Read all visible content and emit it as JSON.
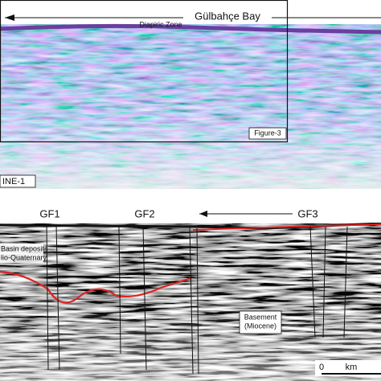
{
  "top_panel": {
    "title": "Gülbahçe Bay",
    "zone": "Diapiric Zone",
    "figure_ref": "Figure-3",
    "line": "INE-1"
  },
  "bottom_panel": {
    "faults": [
      "GF1",
      "GF2",
      "GF3"
    ],
    "basin": [
      "Basin deposits",
      "lio-Quaternary"
    ],
    "basement": [
      "Basement",
      "(Miocene)"
    ],
    "scale": [
      "0",
      "km"
    ]
  }
}
